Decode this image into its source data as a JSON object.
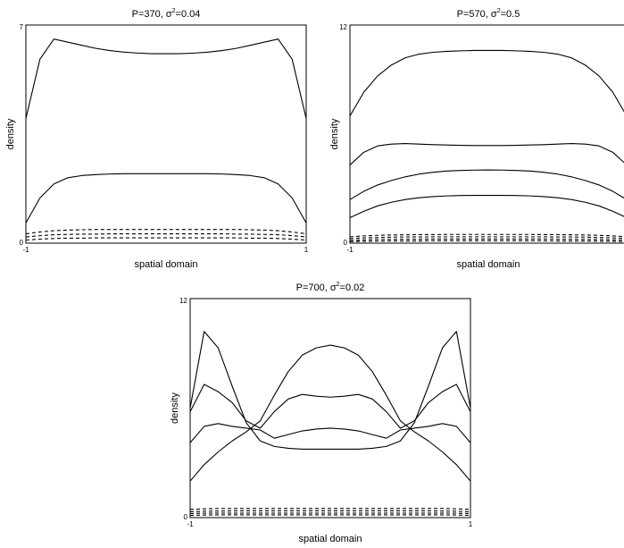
{
  "chart_data": [
    {
      "type": "line",
      "title": {
        "prefix": "P=370,  ",
        "sigma": "σ",
        "power": "2",
        "suffix": "=0.04"
      },
      "xlabel": "spatial domain",
      "ylabel": "density",
      "xlim": [
        -1,
        1
      ],
      "ylim": [
        0,
        7
      ],
      "x_ticks": [
        "-1",
        "1"
      ],
      "y_ticks": [
        "0",
        "7"
      ],
      "x": [
        -1,
        -0.9,
        -0.8,
        -0.7,
        -0.6,
        -0.5,
        -0.4,
        -0.3,
        -0.2,
        -0.1,
        0,
        0.1,
        0.2,
        0.3,
        0.4,
        0.5,
        0.6,
        0.7,
        0.8,
        0.9,
        1
      ],
      "series": [
        {
          "style": "solid",
          "values": [
            4.0,
            5.9,
            6.55,
            6.45,
            6.35,
            6.25,
            6.18,
            6.13,
            6.1,
            6.08,
            6.08,
            6.08,
            6.1,
            6.13,
            6.18,
            6.25,
            6.35,
            6.45,
            6.55,
            5.9,
            4.0
          ]
        },
        {
          "style": "solid",
          "values": [
            0.65,
            1.45,
            1.9,
            2.1,
            2.17,
            2.2,
            2.22,
            2.23,
            2.23,
            2.23,
            2.23,
            2.23,
            2.23,
            2.23,
            2.22,
            2.2,
            2.17,
            2.1,
            1.9,
            1.45,
            0.65
          ]
        },
        {
          "style": "dashed",
          "values": [
            0.3,
            0.36,
            0.4,
            0.42,
            0.43,
            0.44,
            0.44,
            0.44,
            0.44,
            0.44,
            0.44,
            0.44,
            0.44,
            0.44,
            0.44,
            0.44,
            0.43,
            0.42,
            0.4,
            0.36,
            0.3
          ]
        },
        {
          "style": "dashed",
          "values": [
            0.2,
            0.24,
            0.27,
            0.28,
            0.29,
            0.29,
            0.3,
            0.3,
            0.3,
            0.3,
            0.3,
            0.3,
            0.3,
            0.3,
            0.3,
            0.29,
            0.29,
            0.28,
            0.27,
            0.24,
            0.2
          ]
        },
        {
          "style": "dashed",
          "values": [
            0.1,
            0.13,
            0.15,
            0.16,
            0.16,
            0.17,
            0.17,
            0.17,
            0.17,
            0.17,
            0.17,
            0.17,
            0.17,
            0.17,
            0.17,
            0.17,
            0.16,
            0.16,
            0.15,
            0.13,
            0.1
          ]
        }
      ]
    },
    {
      "type": "line",
      "title": {
        "prefix": "P=570,  ",
        "sigma": "σ",
        "power": "2",
        "suffix": "=0.5"
      },
      "xlabel": "spatial domain",
      "ylabel": "density",
      "xlim": [
        -1,
        1
      ],
      "ylim": [
        0,
        12
      ],
      "x_ticks": [
        "-1",
        ""
      ],
      "y_ticks": [
        "0",
        "12"
      ],
      "x": [
        -1,
        -0.9,
        -0.8,
        -0.7,
        -0.6,
        -0.5,
        -0.4,
        -0.3,
        -0.2,
        -0.1,
        0,
        0.1,
        0.2,
        0.3,
        0.4,
        0.5,
        0.6,
        0.7,
        0.8,
        0.9,
        1
      ],
      "series": [
        {
          "style": "solid",
          "values": [
            7.0,
            8.3,
            9.2,
            9.8,
            10.2,
            10.4,
            10.5,
            10.55,
            10.58,
            10.6,
            10.6,
            10.6,
            10.58,
            10.55,
            10.5,
            10.4,
            10.2,
            9.8,
            9.2,
            8.3,
            7.0
          ]
        },
        {
          "style": "solid",
          "values": [
            4.3,
            5.0,
            5.35,
            5.45,
            5.48,
            5.45,
            5.42,
            5.4,
            5.38,
            5.37,
            5.37,
            5.37,
            5.38,
            5.4,
            5.42,
            5.45,
            5.48,
            5.45,
            5.35,
            5.0,
            4.3
          ]
        },
        {
          "style": "solid",
          "values": [
            2.4,
            2.85,
            3.2,
            3.45,
            3.65,
            3.8,
            3.9,
            3.97,
            4.0,
            4.02,
            4.03,
            4.02,
            4.0,
            3.97,
            3.9,
            3.8,
            3.65,
            3.45,
            3.2,
            2.85,
            2.4
          ]
        },
        {
          "style": "solid",
          "values": [
            1.4,
            1.75,
            2.05,
            2.25,
            2.4,
            2.5,
            2.56,
            2.6,
            2.62,
            2.63,
            2.63,
            2.63,
            2.62,
            2.6,
            2.56,
            2.5,
            2.4,
            2.25,
            2.05,
            1.75,
            1.4
          ]
        },
        {
          "style": "dashed",
          "values": [
            0.35,
            0.4,
            0.43,
            0.45,
            0.46,
            0.47,
            0.47,
            0.48,
            0.48,
            0.48,
            0.48,
            0.48,
            0.48,
            0.48,
            0.47,
            0.47,
            0.46,
            0.45,
            0.43,
            0.4,
            0.35
          ]
        },
        {
          "style": "dashed",
          "values": [
            0.25,
            0.29,
            0.31,
            0.33,
            0.34,
            0.34,
            0.35,
            0.35,
            0.35,
            0.35,
            0.35,
            0.35,
            0.35,
            0.35,
            0.35,
            0.34,
            0.34,
            0.33,
            0.31,
            0.29,
            0.25
          ]
        },
        {
          "style": "dashed",
          "values": [
            0.15,
            0.18,
            0.2,
            0.21,
            0.22,
            0.22,
            0.23,
            0.23,
            0.23,
            0.23,
            0.23,
            0.23,
            0.23,
            0.23,
            0.23,
            0.22,
            0.22,
            0.21,
            0.2,
            0.18,
            0.15
          ]
        },
        {
          "style": "dashed",
          "values": [
            0.08,
            0.1,
            0.11,
            0.12,
            0.12,
            0.12,
            0.13,
            0.13,
            0.13,
            0.13,
            0.13,
            0.13,
            0.13,
            0.13,
            0.13,
            0.12,
            0.12,
            0.12,
            0.11,
            0.1,
            0.08
          ]
        }
      ]
    },
    {
      "type": "line",
      "title": {
        "prefix": "P=700,  ",
        "sigma": "σ",
        "power": "2",
        "suffix": "=0.02"
      },
      "xlabel": "spatial domain",
      "ylabel": "density",
      "xlim": [
        -1,
        1
      ],
      "ylim": [
        0,
        12
      ],
      "x_ticks": [
        "-1",
        "1"
      ],
      "y_ticks": [
        "0",
        "12"
      ],
      "x": [
        -1,
        -0.9,
        -0.8,
        -0.7,
        -0.6,
        -0.5,
        -0.4,
        -0.3,
        -0.2,
        -0.1,
        0,
        0.1,
        0.2,
        0.3,
        0.4,
        0.5,
        0.6,
        0.7,
        0.8,
        0.9,
        1
      ],
      "series": [
        {
          "style": "solid",
          "values": [
            6.0,
            10.2,
            9.3,
            7.2,
            5.2,
            4.2,
            3.9,
            3.8,
            3.75,
            3.75,
            3.75,
            3.75,
            3.75,
            3.8,
            3.9,
            4.2,
            5.2,
            7.2,
            9.3,
            10.2,
            6.0
          ]
        },
        {
          "style": "solid",
          "values": [
            5.8,
            7.3,
            6.9,
            6.3,
            5.3,
            4.9,
            5.8,
            6.5,
            6.75,
            6.65,
            6.6,
            6.65,
            6.75,
            6.5,
            5.8,
            4.9,
            5.3,
            6.3,
            6.9,
            7.3,
            5.8
          ]
        },
        {
          "style": "solid",
          "values": [
            4.1,
            5.0,
            5.15,
            5.0,
            4.9,
            4.8,
            4.35,
            4.55,
            4.75,
            4.85,
            4.9,
            4.85,
            4.75,
            4.55,
            4.35,
            4.8,
            4.9,
            5.0,
            5.15,
            5.0,
            4.1
          ]
        },
        {
          "style": "solid",
          "values": [
            2.0,
            2.9,
            3.6,
            4.2,
            4.7,
            5.3,
            6.7,
            8.0,
            8.9,
            9.3,
            9.45,
            9.3,
            8.9,
            8.0,
            6.7,
            5.3,
            4.7,
            4.2,
            3.6,
            2.9,
            2.0
          ]
        },
        {
          "style": "dashed",
          "values": [
            0.45,
            0.48,
            0.5,
            0.5,
            0.5,
            0.5,
            0.5,
            0.5,
            0.5,
            0.5,
            0.5,
            0.5,
            0.5,
            0.5,
            0.5,
            0.5,
            0.5,
            0.5,
            0.5,
            0.48,
            0.45
          ]
        },
        {
          "style": "dashed",
          "values": [
            0.32,
            0.35,
            0.36,
            0.37,
            0.37,
            0.37,
            0.37,
            0.37,
            0.37,
            0.37,
            0.37,
            0.37,
            0.37,
            0.37,
            0.37,
            0.37,
            0.37,
            0.37,
            0.36,
            0.35,
            0.32
          ]
        },
        {
          "style": "dashed",
          "values": [
            0.22,
            0.24,
            0.25,
            0.25,
            0.25,
            0.25,
            0.25,
            0.25,
            0.25,
            0.25,
            0.25,
            0.25,
            0.25,
            0.25,
            0.25,
            0.25,
            0.25,
            0.25,
            0.25,
            0.24,
            0.22
          ]
        },
        {
          "style": "dashed",
          "values": [
            0.12,
            0.14,
            0.15,
            0.15,
            0.15,
            0.15,
            0.15,
            0.15,
            0.15,
            0.15,
            0.15,
            0.15,
            0.15,
            0.15,
            0.15,
            0.15,
            0.15,
            0.15,
            0.15,
            0.14,
            0.12
          ]
        }
      ]
    }
  ]
}
